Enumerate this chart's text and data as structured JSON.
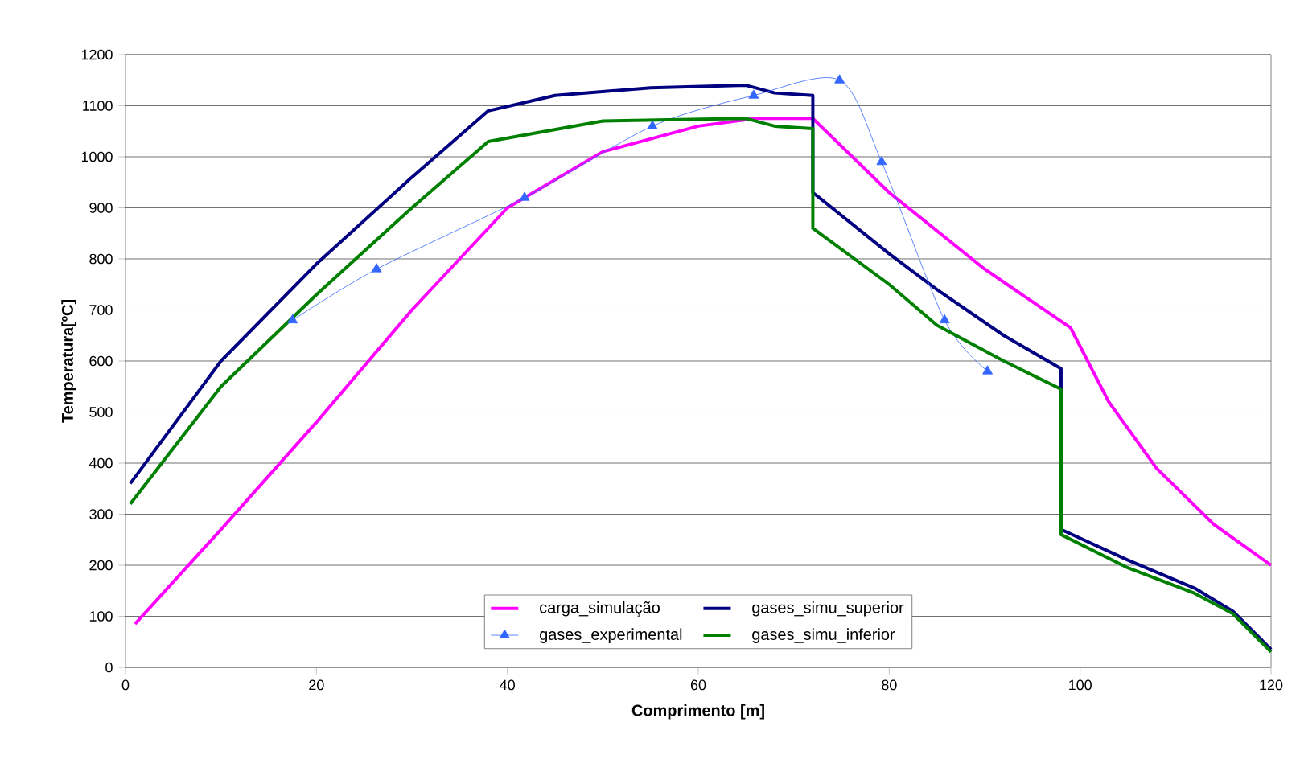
{
  "chart_data": {
    "type": "line",
    "xlabel": "Comprimento [m]",
    "ylabel": "Temperatura[ºC]",
    "xlim": [
      0,
      120
    ],
    "ylim": [
      0,
      1200
    ],
    "xticks": [
      0,
      20,
      40,
      60,
      80,
      100,
      120
    ],
    "yticks": [
      0,
      100,
      200,
      300,
      400,
      500,
      600,
      700,
      800,
      900,
      1000,
      1100,
      1200
    ],
    "grid": "y",
    "legend": "bottom",
    "marker": "none",
    "line_style": "solid",
    "series": [
      {
        "name": "carga_simulação",
        "color": "#ff00ff",
        "x": [
          1,
          10,
          20,
          30,
          40,
          50,
          60,
          66,
          72,
          80,
          90,
          99,
          103,
          108,
          114,
          120
        ],
        "values": [
          85,
          270,
          480,
          700,
          900,
          1010,
          1060,
          1075,
          1075,
          930,
          780,
          665,
          520,
          390,
          280,
          200
        ]
      },
      {
        "name": "gases_simu_superior",
        "color": "#000080",
        "x": [
          0.5,
          10,
          20,
          30,
          38,
          45,
          55,
          65,
          68,
          72,
          72,
          80,
          85,
          92,
          98,
          98,
          105,
          112,
          116,
          120
        ],
        "values": [
          360,
          600,
          790,
          960,
          1090,
          1120,
          1135,
          1140,
          1125,
          1120,
          930,
          810,
          740,
          650,
          585,
          270,
          210,
          155,
          110,
          35
        ]
      },
      {
        "name": "gases_experimental",
        "color": "#3366ff",
        "marker": "triangle",
        "x": [
          17.5,
          26.3,
          41.8,
          55.2,
          65.8,
          74.8,
          79.2,
          85.8,
          90.3
        ],
        "values": [
          680,
          780,
          920,
          1060,
          1120,
          1150,
          990,
          680,
          580
        ]
      },
      {
        "name": "gases_simu_inferior",
        "color": "#008000",
        "x": [
          0.5,
          10,
          20,
          30,
          38,
          50,
          65,
          68,
          72,
          72,
          80,
          85,
          92,
          98,
          98,
          105,
          112,
          116,
          120
        ],
        "values": [
          320,
          550,
          730,
          900,
          1030,
          1070,
          1075,
          1060,
          1055,
          860,
          750,
          670,
          600,
          545,
          260,
          195,
          145,
          105,
          30
        ]
      }
    ]
  }
}
